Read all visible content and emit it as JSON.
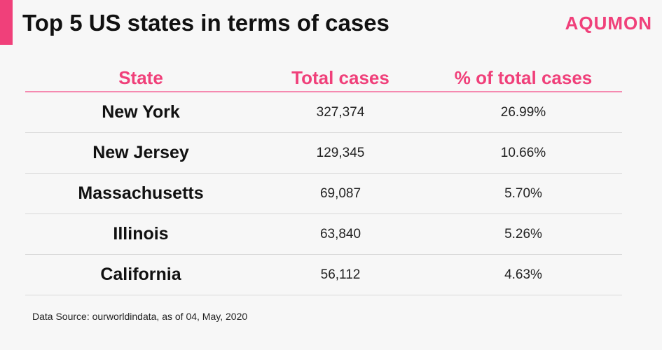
{
  "header": {
    "title": "Top 5 US states in terms of cases",
    "brand": "AQUMON"
  },
  "colors": {
    "accent": "#f0407a",
    "divider": "#f58ab0",
    "background": "#f7f7f7"
  },
  "chart_data": {
    "type": "table",
    "title": "Top 5 US states in terms of cases",
    "columns": [
      "State",
      "Total cases",
      "% of total cases"
    ],
    "rows": [
      {
        "state": "New York",
        "total": "327,374",
        "pct": "26.99%"
      },
      {
        "state": "New Jersey",
        "total": "129,345",
        "pct": "10.66%"
      },
      {
        "state": "Massachusetts",
        "total": "69,087",
        "pct": "5.70%"
      },
      {
        "state": "Illinois",
        "total": "63,840",
        "pct": "5.26%"
      },
      {
        "state": "California",
        "total": "56,112",
        "pct": "4.63%"
      }
    ]
  },
  "footer": {
    "source": "Data Source: ourworldindata, as of 04, May, 2020"
  }
}
